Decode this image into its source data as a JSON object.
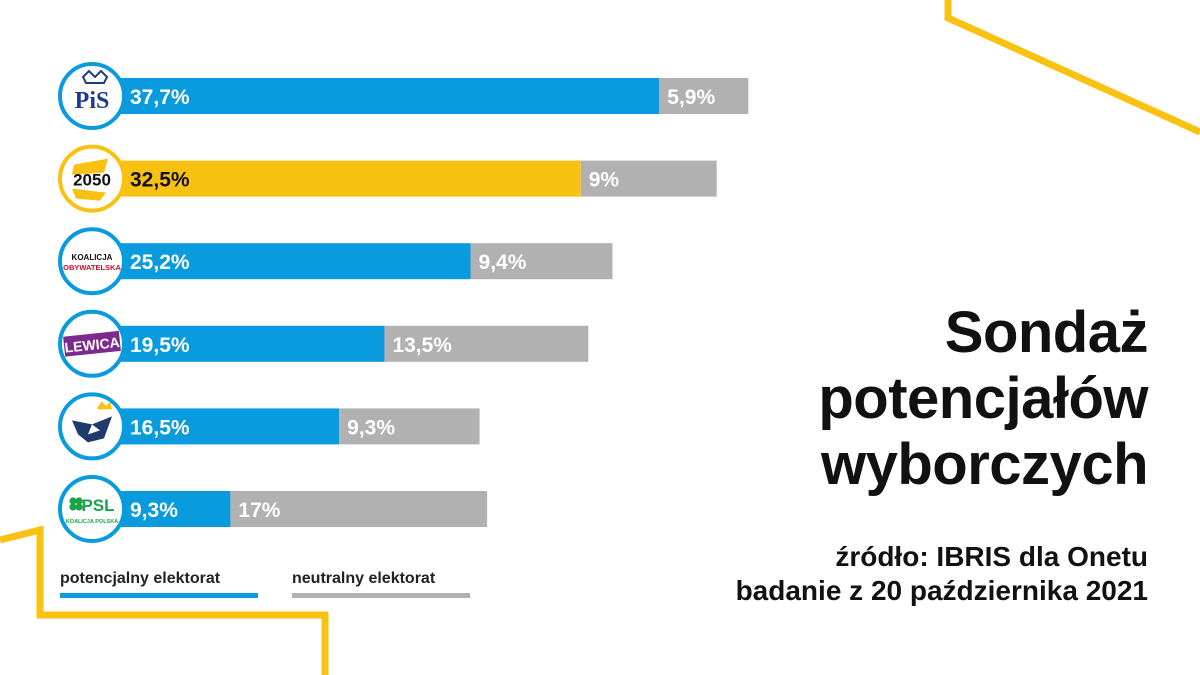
{
  "chart_data": {
    "type": "bar",
    "orientation": "horizontal",
    "stacked": true,
    "title": "Sondaż potencjałów wyborczych",
    "categories": [
      "PiS",
      "2050",
      "KOALICJA OBYWATELSKA",
      "LEWICA",
      "",
      "PSL"
    ],
    "series": [
      {
        "name": "potencjalny elektorat",
        "values": [
          37.7,
          32.5,
          25.2,
          19.5,
          16.5,
          9.3
        ],
        "labels": [
          "37,7%",
          "32,5%",
          "25,2%",
          "19,5%",
          "16,5%",
          "9,3%"
        ]
      },
      {
        "name": "neutralny elektorat",
        "values": [
          5.9,
          9,
          9.4,
          13.5,
          9.3,
          17
        ],
        "labels": [
          "5,9%",
          "9%",
          "9,4%",
          "13,5%",
          "9,3%",
          "17%"
        ]
      }
    ],
    "grid": false,
    "legend": "bottom-left"
  },
  "parties": [
    {
      "name": "PiS",
      "logo": "pis-logo",
      "logo_text": "PiS",
      "bar_color": "#0a9ade"
    },
    {
      "name": "2050",
      "logo": "polska-2050-logo",
      "logo_text": "2050",
      "bar_color": "#f9c212"
    },
    {
      "name": "KOALICJA OBYWATELSKA",
      "logo": "koalicja-obywatelska-logo",
      "logo_text_1": "KOALICJA",
      "logo_text_2": "OBYWATELSKA",
      "bar_color": "#0a9ade"
    },
    {
      "name": "LEWICA",
      "logo": "lewica-logo",
      "logo_text": "LEWICA",
      "bar_color": "#0a9ade"
    },
    {
      "name": "",
      "logo": "konfederacja-eagle-logo",
      "bar_color": "#0a9ade"
    },
    {
      "name": "PSL",
      "logo": "psl-logo",
      "logo_text": "PSL",
      "logo_subtext": "KOALICJA POLSKA",
      "bar_color": "#0a9ade"
    }
  ],
  "colors": {
    "potential": "#0a9ade",
    "potential_highlight": "#f9c212",
    "neutral": "#b1b1b1",
    "accent": "#f9c212"
  },
  "title_lines": [
    "Sondaż",
    "potencjałów",
    "wyborczych"
  ],
  "source_lines": [
    "źródło: IBRIS dla Onetu",
    "badanie z 20 października 2021"
  ],
  "legend": {
    "potential_label": "potencjalny elektorat",
    "neutral_label": "neutralny elektorat"
  }
}
